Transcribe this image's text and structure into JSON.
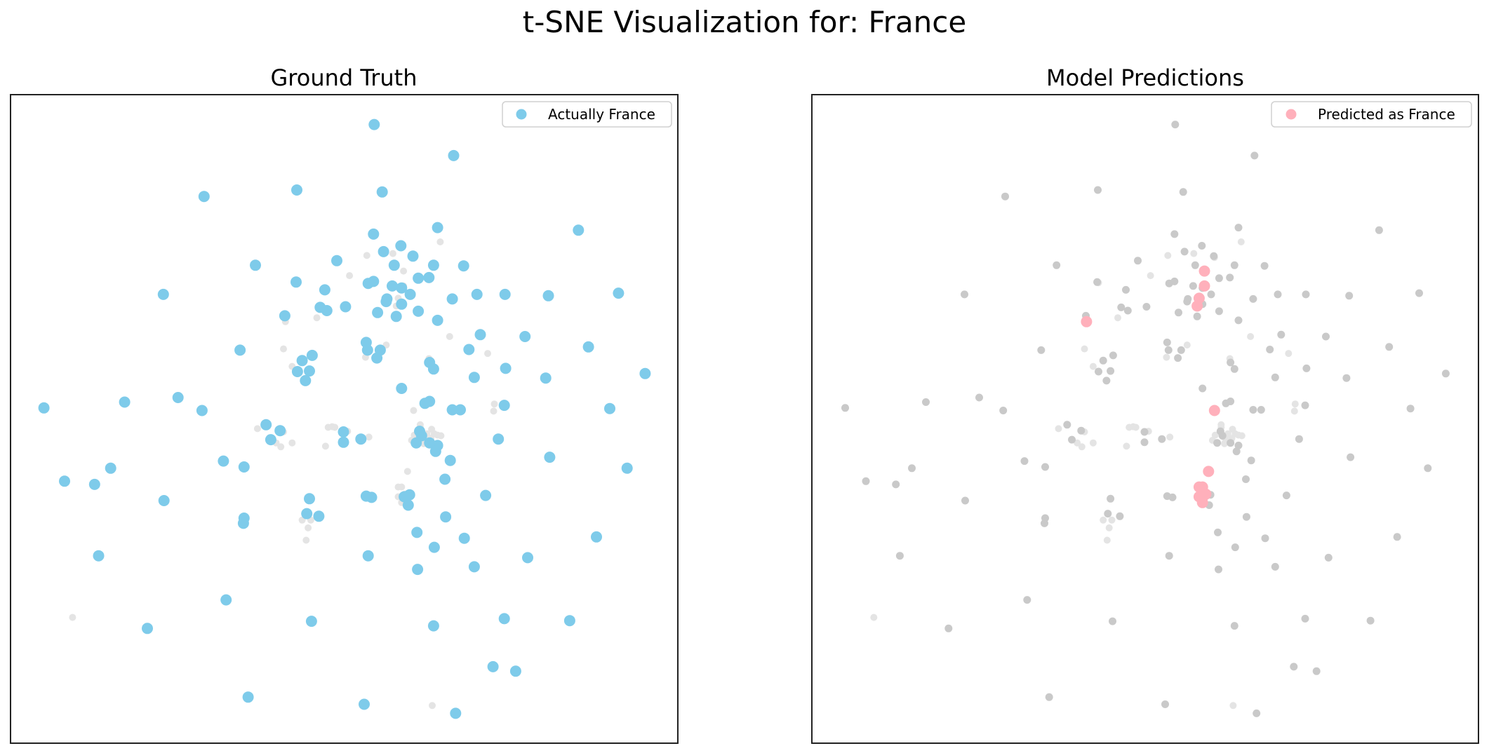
{
  "figure": {
    "title": "t-SNE Visualization for:  France"
  },
  "colors": {
    "actual": "#7ecbea",
    "predicted": "#ffb0bb",
    "other": "#c9c9c9",
    "faint": "#e4e4e4"
  },
  "chart_data": [
    {
      "type": "scatter",
      "title": "Ground Truth",
      "legend": {
        "label": "Actually  France",
        "placement": "top-right"
      },
      "axes_ticks": false,
      "xlim": [
        0,
        1
      ],
      "ylim": [
        0,
        1
      ],
      "grey_visible": "faint",
      "highlight": "actual"
    },
    {
      "type": "scatter",
      "title": "Model Predictions",
      "legend": {
        "label": "Predicted as  France",
        "placement": "top-right"
      },
      "axes_ticks": false,
      "xlim": [
        0,
        1
      ],
      "ylim": [
        0,
        1
      ],
      "grey_visible": "all",
      "highlight": "predicted"
    }
  ],
  "points": {
    "note_units": "t-SNE coordinates normalized to axis range [0,1]; y increases upward",
    "france": [
      [
        0.545,
        0.954
      ],
      [
        0.664,
        0.906
      ],
      [
        0.29,
        0.843
      ],
      [
        0.429,
        0.853
      ],
      [
        0.557,
        0.85
      ],
      [
        0.64,
        0.795
      ],
      [
        0.544,
        0.785
      ],
      [
        0.585,
        0.767
      ],
      [
        0.559,
        0.758
      ],
      [
        0.603,
        0.751
      ],
      [
        0.575,
        0.737
      ],
      [
        0.634,
        0.737
      ],
      [
        0.679,
        0.736
      ],
      [
        0.367,
        0.737
      ],
      [
        0.489,
        0.744
      ],
      [
        0.544,
        0.712
      ],
      [
        0.572,
        0.705
      ],
      [
        0.611,
        0.717
      ],
      [
        0.627,
        0.718
      ],
      [
        0.599,
        0.692
      ],
      [
        0.586,
        0.702
      ],
      [
        0.564,
        0.685
      ],
      [
        0.471,
        0.699
      ],
      [
        0.428,
        0.711
      ],
      [
        0.536,
        0.709
      ],
      [
        0.502,
        0.673
      ],
      [
        0.563,
        0.681
      ],
      [
        0.586,
        0.677
      ],
      [
        0.611,
        0.666
      ],
      [
        0.474,
        0.667
      ],
      [
        0.662,
        0.685
      ],
      [
        0.699,
        0.692
      ],
      [
        0.741,
        0.692
      ],
      [
        0.806,
        0.69
      ],
      [
        0.851,
        0.791
      ],
      [
        0.911,
        0.694
      ],
      [
        0.411,
        0.659
      ],
      [
        0.464,
        0.672
      ],
      [
        0.55,
        0.664
      ],
      [
        0.64,
        0.652
      ],
      [
        0.578,
        0.658
      ],
      [
        0.229,
        0.692
      ],
      [
        0.344,
        0.606
      ],
      [
        0.533,
        0.618
      ],
      [
        0.554,
        0.606
      ],
      [
        0.771,
        0.627
      ],
      [
        0.452,
        0.598
      ],
      [
        0.43,
        0.573
      ],
      [
        0.448,
        0.574
      ],
      [
        0.437,
        0.59
      ],
      [
        0.442,
        0.559
      ],
      [
        0.535,
        0.606
      ],
      [
        0.549,
        0.594
      ],
      [
        0.704,
        0.63
      ],
      [
        0.628,
        0.587
      ],
      [
        0.742,
        0.578
      ],
      [
        0.687,
        0.607
      ],
      [
        0.634,
        0.577
      ],
      [
        0.695,
        0.564
      ],
      [
        0.802,
        0.563
      ],
      [
        0.866,
        0.611
      ],
      [
        0.951,
        0.57
      ],
      [
        0.05,
        0.517
      ],
      [
        0.171,
        0.526
      ],
      [
        0.287,
        0.513
      ],
      [
        0.621,
        0.524
      ],
      [
        0.662,
        0.514
      ],
      [
        0.674,
        0.514
      ],
      [
        0.74,
        0.521
      ],
      [
        0.898,
        0.516
      ],
      [
        0.586,
        0.547
      ],
      [
        0.628,
        0.527
      ],
      [
        0.383,
        0.491
      ],
      [
        0.404,
        0.482
      ],
      [
        0.499,
        0.48
      ],
      [
        0.39,
        0.468
      ],
      [
        0.499,
        0.464
      ],
      [
        0.525,
        0.469
      ],
      [
        0.616,
        0.474
      ],
      [
        0.608,
        0.463
      ],
      [
        0.628,
        0.463
      ],
      [
        0.64,
        0.459
      ],
      [
        0.637,
        0.45
      ],
      [
        0.613,
        0.481
      ],
      [
        0.731,
        0.469
      ],
      [
        0.319,
        0.435
      ],
      [
        0.35,
        0.426
      ],
      [
        0.15,
        0.424
      ],
      [
        0.081,
        0.404
      ],
      [
        0.126,
        0.399
      ],
      [
        0.808,
        0.441
      ],
      [
        0.924,
        0.424
      ],
      [
        0.659,
        0.436
      ],
      [
        0.651,
        0.407
      ],
      [
        0.712,
        0.382
      ],
      [
        0.59,
        0.38
      ],
      [
        0.598,
        0.383
      ],
      [
        0.596,
        0.367
      ],
      [
        0.533,
        0.381
      ],
      [
        0.541,
        0.379
      ],
      [
        0.23,
        0.374
      ],
      [
        0.448,
        0.377
      ],
      [
        0.444,
        0.354
      ],
      [
        0.462,
        0.35
      ],
      [
        0.35,
        0.347
      ],
      [
        0.652,
        0.349
      ],
      [
        0.609,
        0.325
      ],
      [
        0.132,
        0.289
      ],
      [
        0.349,
        0.339
      ],
      [
        0.878,
        0.318
      ],
      [
        0.68,
        0.316
      ],
      [
        0.536,
        0.289
      ],
      [
        0.775,
        0.286
      ],
      [
        0.635,
        0.302
      ],
      [
        0.61,
        0.268
      ],
      [
        0.695,
        0.272
      ],
      [
        0.323,
        0.221
      ],
      [
        0.205,
        0.177
      ],
      [
        0.451,
        0.188
      ],
      [
        0.634,
        0.181
      ],
      [
        0.74,
        0.192
      ],
      [
        0.838,
        0.189
      ],
      [
        0.723,
        0.118
      ],
      [
        0.757,
        0.111
      ],
      [
        0.356,
        0.071
      ],
      [
        0.53,
        0.06
      ],
      [
        0.667,
        0.046
      ],
      [
        0.251,
        0.533
      ]
    ],
    "others": [
      [
        0.644,
        0.773
      ],
      [
        0.604,
        0.749
      ],
      [
        0.43,
        0.71
      ],
      [
        0.508,
        0.721
      ],
      [
        0.534,
        0.752
      ],
      [
        0.573,
        0.755
      ],
      [
        0.459,
        0.656
      ],
      [
        0.532,
        0.595
      ],
      [
        0.658,
        0.627
      ],
      [
        0.715,
        0.601
      ],
      [
        0.627,
        0.593
      ],
      [
        0.409,
        0.608
      ],
      [
        0.422,
        0.581
      ],
      [
        0.563,
        0.614
      ],
      [
        0.725,
        0.523
      ],
      [
        0.614,
        0.487
      ],
      [
        0.635,
        0.477
      ],
      [
        0.624,
        0.477
      ],
      [
        0.605,
        0.475
      ],
      [
        0.601,
        0.467
      ],
      [
        0.62,
        0.47
      ],
      [
        0.63,
        0.47
      ],
      [
        0.619,
        0.462
      ],
      [
        0.645,
        0.474
      ],
      [
        0.482,
        0.488
      ],
      [
        0.505,
        0.481
      ],
      [
        0.409,
        0.48
      ],
      [
        0.724,
        0.512
      ],
      [
        0.537,
        0.472
      ],
      [
        0.476,
        0.487
      ],
      [
        0.486,
        0.487
      ],
      [
        0.472,
        0.458
      ],
      [
        0.398,
        0.463
      ],
      [
        0.37,
        0.485
      ],
      [
        0.437,
        0.344
      ],
      [
        0.45,
        0.344
      ],
      [
        0.446,
        0.332
      ],
      [
        0.443,
        0.313
      ],
      [
        0.422,
        0.463
      ],
      [
        0.405,
        0.457
      ],
      [
        0.632,
        0.058
      ],
      [
        0.093,
        0.194
      ],
      [
        0.64,
        0.475
      ],
      [
        0.631,
        0.484
      ],
      [
        0.614,
        0.491
      ]
    ],
    "predicted": [
      [
        0.589,
        0.728
      ],
      [
        0.589,
        0.705
      ],
      [
        0.581,
        0.686
      ],
      [
        0.578,
        0.674
      ],
      [
        0.412,
        0.65
      ],
      [
        0.604,
        0.513
      ],
      [
        0.595,
        0.419
      ],
      [
        0.586,
        0.395
      ],
      [
        0.581,
        0.395
      ],
      [
        0.591,
        0.384
      ],
      [
        0.586,
        0.371
      ],
      [
        0.581,
        0.38
      ]
    ]
  }
}
